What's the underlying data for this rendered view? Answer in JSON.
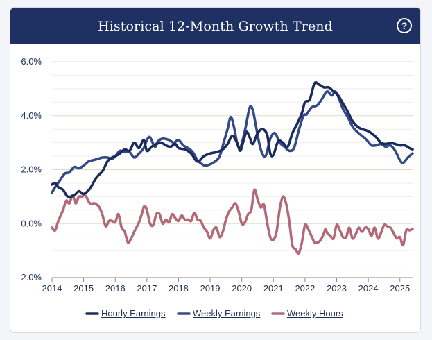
{
  "header": {
    "title": "Historical 12-Month Growth Trend",
    "help_icon": "question-circle-icon"
  },
  "chart_data": {
    "type": "line",
    "title": "Historical 12-Month Growth Trend",
    "xlabel": "",
    "ylabel": "",
    "xlim": [
      2014,
      2025.4
    ],
    "ylim": [
      -2.0,
      6.0
    ],
    "x_ticks": [
      "2014",
      "2015",
      "2016",
      "2017",
      "2018",
      "2019",
      "2020",
      "2021",
      "2022",
      "2023",
      "2024",
      "2025"
    ],
    "y_ticks": [
      "-2.0%",
      "0.0%",
      "2.0%",
      "4.0%",
      "6.0%"
    ],
    "grid": true,
    "legend_position": "bottom",
    "series": [
      {
        "name": "Hourly Earnings",
        "color": "#1b2b5c",
        "points": [
          [
            2014.0,
            1.45
          ],
          [
            2014.1,
            1.5
          ],
          [
            2014.2,
            1.35
          ],
          [
            2014.35,
            1.25
          ],
          [
            2014.5,
            1.0
          ],
          [
            2014.7,
            1.05
          ],
          [
            2014.85,
            1.2
          ],
          [
            2015.0,
            1.1
          ],
          [
            2015.2,
            1.3
          ],
          [
            2015.4,
            1.7
          ],
          [
            2015.6,
            1.95
          ],
          [
            2015.75,
            2.3
          ],
          [
            2015.9,
            2.45
          ],
          [
            2016.0,
            2.5
          ],
          [
            2016.15,
            2.6
          ],
          [
            2016.3,
            2.75
          ],
          [
            2016.45,
            2.7
          ],
          [
            2016.6,
            3.0
          ],
          [
            2016.75,
            2.8
          ],
          [
            2016.9,
            3.1
          ],
          [
            2017.0,
            2.7
          ],
          [
            2017.15,
            2.85
          ],
          [
            2017.3,
            2.95
          ],
          [
            2017.45,
            3.0
          ],
          [
            2017.6,
            2.9
          ],
          [
            2017.75,
            2.85
          ],
          [
            2017.9,
            2.95
          ],
          [
            2018.0,
            2.8
          ],
          [
            2018.2,
            2.75
          ],
          [
            2018.4,
            2.6
          ],
          [
            2018.6,
            2.3
          ],
          [
            2018.8,
            2.5
          ],
          [
            2019.0,
            2.6
          ],
          [
            2019.2,
            2.65
          ],
          [
            2019.4,
            2.75
          ],
          [
            2019.55,
            2.95
          ],
          [
            2019.7,
            3.25
          ],
          [
            2019.85,
            3.0
          ],
          [
            2019.95,
            2.7
          ],
          [
            2020.05,
            3.05
          ],
          [
            2020.15,
            3.4
          ],
          [
            2020.25,
            3.2
          ],
          [
            2020.35,
            2.95
          ],
          [
            2020.5,
            3.35
          ],
          [
            2020.65,
            3.5
          ],
          [
            2020.8,
            3.3
          ],
          [
            2020.9,
            2.6
          ],
          [
            2021.0,
            2.55
          ],
          [
            2021.15,
            3.05
          ],
          [
            2021.3,
            3.0
          ],
          [
            2021.45,
            2.85
          ],
          [
            2021.6,
            3.35
          ],
          [
            2021.75,
            3.7
          ],
          [
            2021.9,
            4.1
          ],
          [
            2022.0,
            4.5
          ],
          [
            2022.15,
            4.6
          ],
          [
            2022.3,
            5.2
          ],
          [
            2022.45,
            5.15
          ],
          [
            2022.6,
            5.05
          ],
          [
            2022.75,
            5.05
          ],
          [
            2022.9,
            4.9
          ],
          [
            2023.05,
            4.75
          ],
          [
            2023.2,
            4.45
          ],
          [
            2023.35,
            4.15
          ],
          [
            2023.5,
            3.8
          ],
          [
            2023.65,
            3.6
          ],
          [
            2023.8,
            3.5
          ],
          [
            2023.95,
            3.45
          ],
          [
            2024.1,
            3.35
          ],
          [
            2024.25,
            3.2
          ],
          [
            2024.4,
            3.0
          ],
          [
            2024.55,
            2.95
          ],
          [
            2024.7,
            3.0
          ],
          [
            2024.85,
            2.95
          ],
          [
            2025.0,
            2.9
          ],
          [
            2025.15,
            2.9
          ],
          [
            2025.3,
            2.8
          ],
          [
            2025.4,
            2.75
          ]
        ]
      },
      {
        "name": "Weekly Earnings",
        "color": "#344a86",
        "points": [
          [
            2014.0,
            1.15
          ],
          [
            2014.1,
            1.35
          ],
          [
            2014.25,
            1.6
          ],
          [
            2014.4,
            1.85
          ],
          [
            2014.55,
            1.9
          ],
          [
            2014.7,
            2.1
          ],
          [
            2014.85,
            2.05
          ],
          [
            2015.0,
            2.15
          ],
          [
            2015.15,
            2.3
          ],
          [
            2015.3,
            2.35
          ],
          [
            2015.45,
            2.4
          ],
          [
            2015.6,
            2.45
          ],
          [
            2015.75,
            2.45
          ],
          [
            2015.9,
            2.4
          ],
          [
            2016.0,
            2.5
          ],
          [
            2016.15,
            2.7
          ],
          [
            2016.3,
            2.65
          ],
          [
            2016.45,
            2.65
          ],
          [
            2016.6,
            2.45
          ],
          [
            2016.75,
            2.6
          ],
          [
            2016.9,
            2.8
          ],
          [
            2017.0,
            3.1
          ],
          [
            2017.1,
            3.2
          ],
          [
            2017.25,
            2.85
          ],
          [
            2017.35,
            3.05
          ],
          [
            2017.5,
            3.15
          ],
          [
            2017.7,
            3.1
          ],
          [
            2017.85,
            3.0
          ],
          [
            2018.0,
            3.1
          ],
          [
            2018.15,
            2.9
          ],
          [
            2018.3,
            2.8
          ],
          [
            2018.45,
            2.65
          ],
          [
            2018.6,
            2.35
          ],
          [
            2018.75,
            2.2
          ],
          [
            2018.85,
            2.15
          ],
          [
            2019.0,
            2.2
          ],
          [
            2019.15,
            2.3
          ],
          [
            2019.3,
            2.5
          ],
          [
            2019.45,
            3.1
          ],
          [
            2019.55,
            3.5
          ],
          [
            2019.65,
            3.95
          ],
          [
            2019.75,
            3.6
          ],
          [
            2019.85,
            3.0
          ],
          [
            2019.95,
            2.8
          ],
          [
            2020.1,
            3.45
          ],
          [
            2020.25,
            4.3
          ],
          [
            2020.35,
            4.2
          ],
          [
            2020.45,
            3.6
          ],
          [
            2020.6,
            2.75
          ],
          [
            2020.75,
            2.5
          ],
          [
            2020.9,
            3.15
          ],
          [
            2021.05,
            3.35
          ],
          [
            2021.2,
            3.0
          ],
          [
            2021.35,
            2.85
          ],
          [
            2021.5,
            2.7
          ],
          [
            2021.65,
            2.8
          ],
          [
            2021.8,
            3.45
          ],
          [
            2021.95,
            4.0
          ],
          [
            2022.05,
            4.05
          ],
          [
            2022.2,
            4.3
          ],
          [
            2022.4,
            4.4
          ],
          [
            2022.55,
            4.65
          ],
          [
            2022.7,
            4.9
          ],
          [
            2022.85,
            4.75
          ],
          [
            2022.95,
            4.9
          ],
          [
            2023.05,
            4.7
          ],
          [
            2023.2,
            4.25
          ],
          [
            2023.35,
            3.95
          ],
          [
            2023.5,
            3.6
          ],
          [
            2023.65,
            3.4
          ],
          [
            2023.8,
            3.25
          ],
          [
            2023.95,
            3.1
          ],
          [
            2024.1,
            2.9
          ],
          [
            2024.25,
            2.9
          ],
          [
            2024.4,
            2.95
          ],
          [
            2024.55,
            2.85
          ],
          [
            2024.7,
            2.9
          ],
          [
            2024.85,
            2.7
          ],
          [
            2025.0,
            2.35
          ],
          [
            2025.1,
            2.25
          ],
          [
            2025.25,
            2.45
          ],
          [
            2025.4,
            2.6
          ]
        ]
      },
      {
        "name": "Weekly Hours",
        "color": "#b26a78",
        "points": [
          [
            2014.0,
            -0.15
          ],
          [
            2014.1,
            -0.25
          ],
          [
            2014.2,
            0.1
          ],
          [
            2014.35,
            0.5
          ],
          [
            2014.45,
            0.85
          ],
          [
            2014.55,
            0.75
          ],
          [
            2014.65,
            1.05
          ],
          [
            2014.75,
            0.75
          ],
          [
            2014.85,
            1.0
          ],
          [
            2014.95,
            1.0
          ],
          [
            2015.05,
            1.05
          ],
          [
            2015.2,
            0.75
          ],
          [
            2015.35,
            0.75
          ],
          [
            2015.5,
            0.6
          ],
          [
            2015.6,
            0.3
          ],
          [
            2015.7,
            -0.1
          ],
          [
            2015.8,
            0.1
          ],
          [
            2015.9,
            0.1
          ],
          [
            2016.0,
            0.05
          ],
          [
            2016.1,
            0.35
          ],
          [
            2016.2,
            -0.15
          ],
          [
            2016.3,
            -0.3
          ],
          [
            2016.4,
            -0.7
          ],
          [
            2016.5,
            -0.55
          ],
          [
            2016.6,
            -0.3
          ],
          [
            2016.75,
            0.05
          ],
          [
            2016.85,
            0.4
          ],
          [
            2016.92,
            0.65
          ],
          [
            2017.0,
            0.5
          ],
          [
            2017.1,
            0.0
          ],
          [
            2017.2,
            -0.05
          ],
          [
            2017.3,
            0.35
          ],
          [
            2017.4,
            0.35
          ],
          [
            2017.5,
            0.0
          ],
          [
            2017.6,
            0.15
          ],
          [
            2017.7,
            0.05
          ],
          [
            2017.8,
            0.35
          ],
          [
            2017.9,
            0.2
          ],
          [
            2018.0,
            0.1
          ],
          [
            2018.1,
            0.3
          ],
          [
            2018.2,
            0.15
          ],
          [
            2018.3,
            0.15
          ],
          [
            2018.4,
            0.1
          ],
          [
            2018.5,
            0.4
          ],
          [
            2018.6,
            0.15
          ],
          [
            2018.7,
            0.1
          ],
          [
            2018.8,
            -0.15
          ],
          [
            2018.9,
            -0.3
          ],
          [
            2019.0,
            -0.55
          ],
          [
            2019.1,
            -0.25
          ],
          [
            2019.2,
            -0.15
          ],
          [
            2019.3,
            -0.5
          ],
          [
            2019.4,
            -0.3
          ],
          [
            2019.5,
            0.15
          ],
          [
            2019.6,
            0.45
          ],
          [
            2019.7,
            0.6
          ],
          [
            2019.8,
            0.75
          ],
          [
            2019.9,
            0.45
          ],
          [
            2020.0,
            0.0
          ],
          [
            2020.1,
            0.05
          ],
          [
            2020.2,
            0.35
          ],
          [
            2020.3,
            0.5
          ],
          [
            2020.4,
            1.25
          ],
          [
            2020.5,
            0.9
          ],
          [
            2020.6,
            0.6
          ],
          [
            2020.7,
            0.7
          ],
          [
            2020.8,
            0.05
          ],
          [
            2020.9,
            -0.5
          ],
          [
            2021.0,
            -0.6
          ],
          [
            2021.1,
            -0.3
          ],
          [
            2021.2,
            0.55
          ],
          [
            2021.3,
            1.0
          ],
          [
            2021.4,
            0.75
          ],
          [
            2021.5,
            0.1
          ],
          [
            2021.6,
            -0.8
          ],
          [
            2021.7,
            -0.95
          ],
          [
            2021.8,
            -1.1
          ],
          [
            2021.9,
            -0.7
          ],
          [
            2022.0,
            -0.05
          ],
          [
            2022.1,
            -0.2
          ],
          [
            2022.2,
            -0.45
          ],
          [
            2022.3,
            -0.7
          ],
          [
            2022.4,
            -0.7
          ],
          [
            2022.5,
            -0.6
          ],
          [
            2022.6,
            -0.35
          ],
          [
            2022.65,
            -0.2
          ],
          [
            2022.7,
            -0.35
          ],
          [
            2022.8,
            -0.45
          ],
          [
            2022.9,
            -0.55
          ],
          [
            2023.0,
            -0.05
          ],
          [
            2023.1,
            -0.25
          ],
          [
            2023.2,
            -0.5
          ],
          [
            2023.3,
            -0.5
          ],
          [
            2023.4,
            -0.15
          ],
          [
            2023.5,
            -0.55
          ],
          [
            2023.6,
            -0.4
          ],
          [
            2023.7,
            -0.15
          ],
          [
            2023.8,
            -0.3
          ],
          [
            2023.9,
            -0.15
          ],
          [
            2024.0,
            -0.2
          ],
          [
            2024.1,
            -0.45
          ],
          [
            2024.2,
            -0.15
          ],
          [
            2024.3,
            -0.55
          ],
          [
            2024.4,
            -0.35
          ],
          [
            2024.5,
            -0.05
          ],
          [
            2024.6,
            -0.1
          ],
          [
            2024.7,
            -0.15
          ],
          [
            2024.8,
            -0.35
          ],
          [
            2024.9,
            -0.55
          ],
          [
            2025.0,
            -0.5
          ],
          [
            2025.1,
            -0.8
          ],
          [
            2025.2,
            -0.25
          ],
          [
            2025.3,
            -0.25
          ],
          [
            2025.4,
            -0.2
          ]
        ]
      }
    ]
  }
}
